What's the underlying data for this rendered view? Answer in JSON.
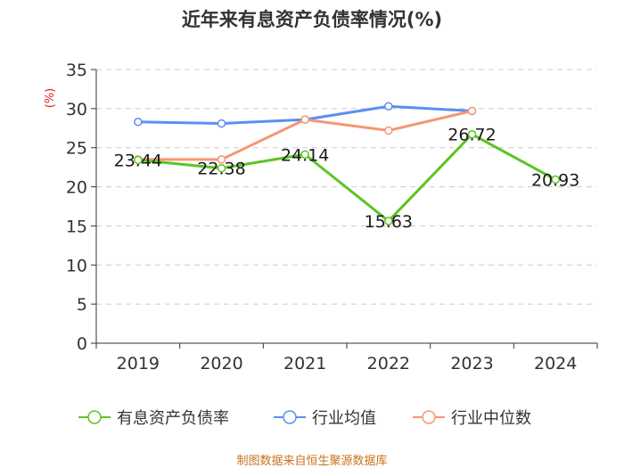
{
  "chart_data": {
    "type": "line",
    "title": "近年来有息资产负债率情况(%)",
    "unit": "(%)",
    "categories": [
      "2019",
      "2020",
      "2021",
      "2022",
      "2023",
      "2024"
    ],
    "ylim": [
      0,
      35
    ],
    "yticks": [
      "0",
      "5",
      "10",
      "15",
      "20",
      "25",
      "30",
      "35"
    ],
    "grid": true,
    "legend_position": "bottom",
    "series": [
      {
        "name": "有息资产负债率",
        "color": "#5cc524",
        "values": [
          23.44,
          22.38,
          24.14,
          15.63,
          26.72,
          20.93
        ],
        "labels": [
          "23.44",
          "22.38",
          "24.14",
          "15.63",
          "26.72",
          "20.93"
        ]
      },
      {
        "name": "行业均值",
        "color": "#5b8ff0",
        "values": [
          28.3,
          28.1,
          28.6,
          30.3,
          29.7,
          null
        ]
      },
      {
        "name": "行业中位数",
        "color": "#f59673",
        "values": [
          23.5,
          23.5,
          28.6,
          27.2,
          29.7,
          null
        ]
      }
    ],
    "source": "制图数据来自恒生聚源数据库"
  }
}
